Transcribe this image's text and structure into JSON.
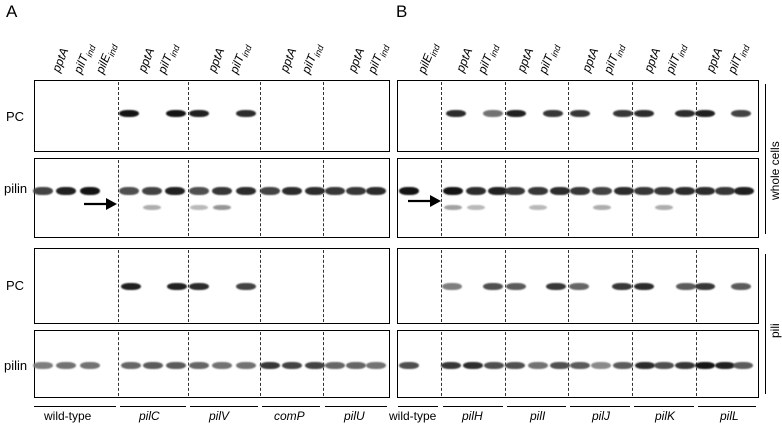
{
  "panels": {
    "a": "A",
    "b": "B"
  },
  "lane_text": {
    "pptA": "pptA",
    "pilT_base": "pilT",
    "pilT_sub": "ind",
    "pilE_base": "pilE",
    "pilE_sub": "ind"
  },
  "rows": {
    "pc": "PC",
    "pilin": "pilin"
  },
  "side": {
    "whole": "whole cells",
    "pili": "pili"
  },
  "strains_a": [
    "wild-type",
    "pilC",
    "pilV",
    "comP",
    "pilU"
  ],
  "strains_b": [
    "wild-type",
    "pilH",
    "pilI",
    "pilJ",
    "pilK",
    "pilL"
  ]
}
